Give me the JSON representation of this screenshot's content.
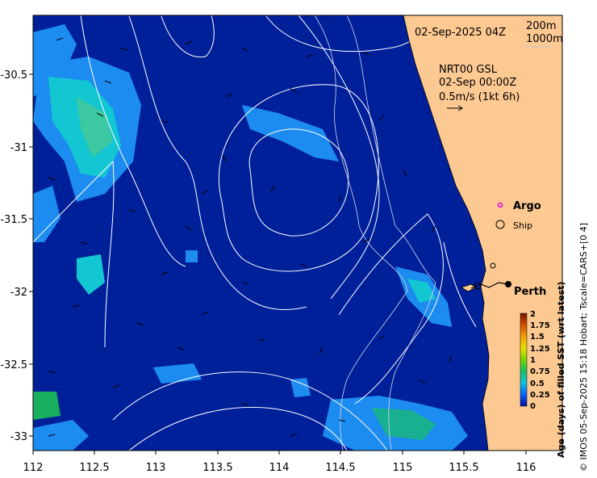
{
  "map": {
    "timestamp": "02-Sep-2025 04Z",
    "depth_contours": [
      "200m",
      "1000m"
    ],
    "current_product": "NRT00 GSL",
    "current_time": "02-Sep 00:00Z",
    "current_scale": "0.5m/s (1kt 6h)",
    "x_ticks": [
      "112",
      "112.5",
      "113",
      "113.5",
      "114",
      "114.5",
      "115",
      "115.5",
      "116"
    ],
    "y_ticks": [
      "-30.5",
      "-31",
      "-31.5",
      "-32",
      "-32.5",
      "-33"
    ],
    "legend": {
      "argo": "Argo",
      "ship": "Ship"
    },
    "place_label": "Perth",
    "colorbar": {
      "title": "Age (days) of filled SST (wrt latest)",
      "ticks": [
        "2",
        "1.75",
        "1.5",
        "1.25",
        "1",
        "0.75",
        "0.5",
        "0.25",
        "0"
      ],
      "colors": [
        "#7a1400",
        "#d24a00",
        "#f0a000",
        "#e8e000",
        "#7ad400",
        "#18c060",
        "#10c8d8",
        "#1880ff",
        "#0010a0"
      ]
    },
    "credit": "© IMOS 05-Sep-2025 15:18 Hobart; Tscale=CARS+[0 4]",
    "colors": {
      "ocean": "#00209a",
      "land": "#fdc993",
      "patch_cyan": "#12c6d2",
      "patch_light": "#1c8cf0",
      "contour": "#ffffff",
      "argo_marker": "#e000e0"
    }
  }
}
